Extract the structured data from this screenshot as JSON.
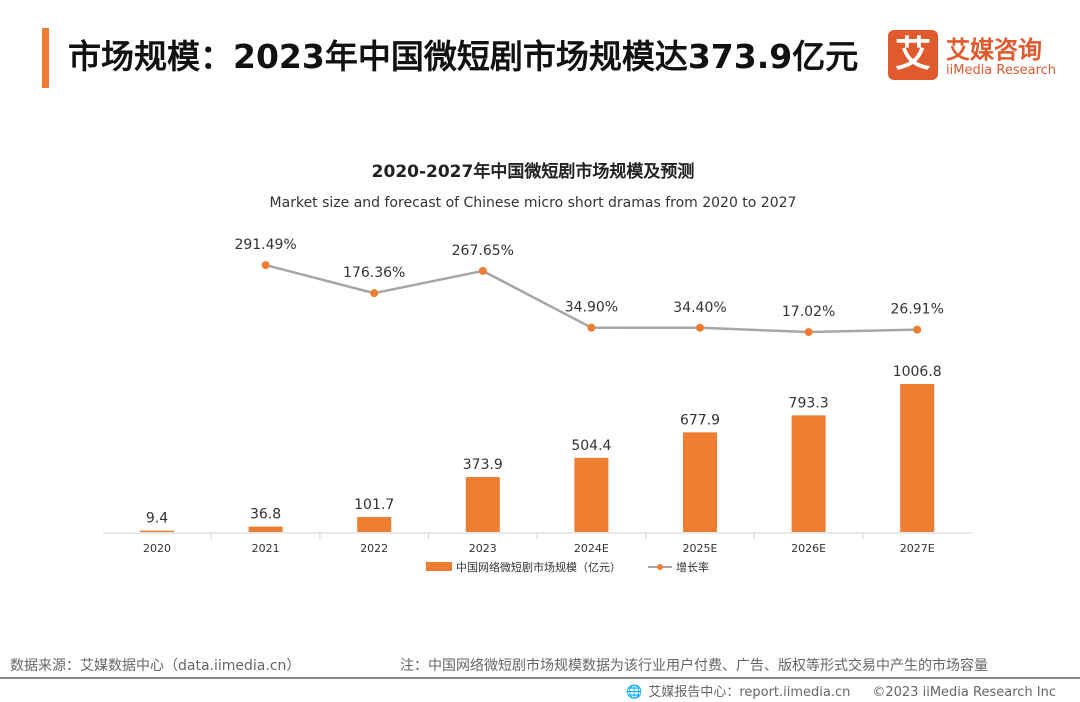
{
  "header": {
    "title": "市场规模：2023年中国微短剧市场规模达373.9亿元"
  },
  "logo": {
    "mark": "艾",
    "cn": "艾媒咨询",
    "en": "iiMedia Research"
  },
  "footer": {
    "source": "数据来源：艾媒数据中心（data.iimedia.cn）",
    "note": "注：中国网络微短剧市场规模数据为该行业用户付费、广告、版权等形式交易中产生的市场容量",
    "report": "艾媒报告中心：report.iimedia.cn",
    "copyright": "©2023  iiMedia Research Inc"
  },
  "colors": {
    "bar": "#ed7d31",
    "line": "#a6a6a6",
    "marker": "#ed7d31",
    "accent": "#ed7d31"
  },
  "chart_data": {
    "type": "bar",
    "title": "2020-2027年中国微短剧市场规模及预测",
    "subtitle": "Market size and forecast of Chinese micro short dramas from 2020 to 2027",
    "categories": [
      "2020",
      "2021",
      "2022",
      "2023",
      "2024E",
      "2025E",
      "2026E",
      "2027E"
    ],
    "series": [
      {
        "name": "中国网络微短剧市场规模（亿元）",
        "type": "bar",
        "values": [
          9.4,
          36.8,
          101.7,
          373.9,
          504.4,
          677.9,
          793.3,
          1006.8
        ],
        "labels": [
          "9.4",
          "36.8",
          "101.7",
          "373.9",
          "504.4",
          "677.9",
          "793.3",
          "1006.8"
        ]
      },
      {
        "name": "增长率",
        "type": "line",
        "values": [
          null,
          291.49,
          176.36,
          267.65,
          34.9,
          34.4,
          17.02,
          26.91
        ],
        "labels": [
          "",
          "291.49%",
          "176.36%",
          "267.65%",
          "34.90%",
          "34.40%",
          "17.02%",
          "26.91%"
        ],
        "unit": "%"
      }
    ],
    "legend": "bottom"
  }
}
